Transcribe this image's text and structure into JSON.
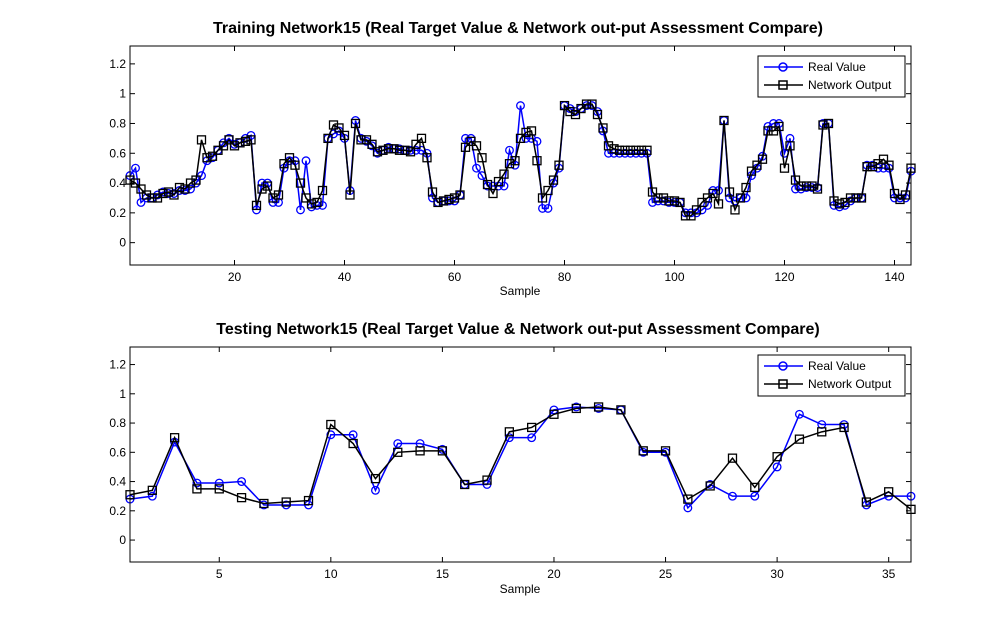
{
  "colors": {
    "real": "#0000ff",
    "network": "#000000",
    "axes": "#000000",
    "background": "#ffffff"
  },
  "chart_data": [
    {
      "type": "line",
      "title": "Training Network15 (Real Target Value & Network out-put Assessment Compare)",
      "xlabel": "Sample",
      "ylabel": "",
      "xlim": [
        1,
        143
      ],
      "ylim": [
        -0.15,
        1.32
      ],
      "xticks": [
        20,
        40,
        60,
        80,
        100,
        120,
        140
      ],
      "yticks": [
        0,
        0.2,
        0.4,
        0.6,
        0.8,
        1,
        1.2
      ],
      "grid": false,
      "legend_position": "top-right",
      "x": [
        1,
        2,
        3,
        4,
        5,
        6,
        7,
        8,
        9,
        10,
        11,
        12,
        13,
        14,
        15,
        16,
        17,
        18,
        19,
        20,
        21,
        22,
        23,
        24,
        25,
        26,
        27,
        28,
        29,
        30,
        31,
        32,
        33,
        34,
        35,
        36,
        37,
        38,
        39,
        40,
        41,
        42,
        43,
        44,
        45,
        46,
        47,
        48,
        49,
        50,
        51,
        52,
        53,
        54,
        55,
        56,
        57,
        58,
        59,
        60,
        61,
        62,
        63,
        64,
        65,
        66,
        67,
        68,
        69,
        70,
        71,
        72,
        73,
        74,
        75,
        76,
        77,
        78,
        79,
        80,
        81,
        82,
        83,
        84,
        85,
        86,
        87,
        88,
        89,
        90,
        91,
        92,
        93,
        94,
        95,
        96,
        97,
        98,
        99,
        100,
        101,
        102,
        103,
        104,
        105,
        106,
        107,
        108,
        109,
        110,
        111,
        112,
        113,
        114,
        115,
        116,
        117,
        118,
        119,
        120,
        121,
        122,
        123,
        124,
        125,
        126,
        127,
        128,
        129,
        130,
        131,
        132,
        133,
        134,
        135,
        136,
        137,
        138,
        139,
        140,
        141,
        142,
        143
      ],
      "series": [
        {
          "name": "Real Value",
          "marker": "circle",
          "values": [
            0.45,
            0.5,
            0.27,
            0.3,
            0.3,
            0.32,
            0.34,
            0.33,
            0.33,
            0.35,
            0.35,
            0.36,
            0.4,
            0.45,
            0.55,
            0.57,
            0.62,
            0.67,
            0.7,
            0.66,
            0.67,
            0.7,
            0.72,
            0.22,
            0.4,
            0.4,
            0.27,
            0.27,
            0.5,
            0.55,
            0.55,
            0.22,
            0.55,
            0.24,
            0.25,
            0.25,
            0.7,
            0.73,
            0.75,
            0.7,
            0.35,
            0.82,
            0.7,
            0.68,
            0.65,
            0.6,
            0.62,
            0.64,
            0.63,
            0.63,
            0.62,
            0.62,
            0.62,
            0.62,
            0.6,
            0.3,
            0.27,
            0.28,
            0.28,
            0.28,
            0.32,
            0.7,
            0.7,
            0.5,
            0.45,
            0.38,
            0.38,
            0.38,
            0.38,
            0.62,
            0.52,
            0.92,
            0.7,
            0.7,
            0.68,
            0.23,
            0.23,
            0.4,
            0.5,
            0.92,
            0.9,
            0.88,
            0.9,
            0.92,
            0.92,
            0.88,
            0.75,
            0.6,
            0.6,
            0.6,
            0.6,
            0.6,
            0.6,
            0.6,
            0.6,
            0.27,
            0.28,
            0.28,
            0.27,
            0.27,
            0.27,
            0.2,
            0.2,
            0.2,
            0.22,
            0.25,
            0.35,
            0.35,
            0.82,
            0.3,
            0.28,
            0.3,
            0.3,
            0.45,
            0.5,
            0.58,
            0.78,
            0.8,
            0.8,
            0.6,
            0.7,
            0.36,
            0.36,
            0.37,
            0.37,
            0.37,
            0.8,
            0.8,
            0.25,
            0.24,
            0.25,
            0.28,
            0.3,
            0.3,
            0.52,
            0.52,
            0.5,
            0.5,
            0.5,
            0.3,
            0.3,
            0.3,
            0.48
          ]
        },
        {
          "name": "Network Output",
          "marker": "square",
          "values": [
            0.42,
            0.4,
            0.36,
            0.32,
            0.3,
            0.3,
            0.33,
            0.34,
            0.32,
            0.37,
            0.36,
            0.4,
            0.42,
            0.69,
            0.57,
            0.58,
            0.62,
            0.65,
            0.69,
            0.65,
            0.67,
            0.68,
            0.69,
            0.25,
            0.36,
            0.38,
            0.3,
            0.32,
            0.53,
            0.57,
            0.52,
            0.4,
            0.3,
            0.26,
            0.27,
            0.35,
            0.7,
            0.79,
            0.77,
            0.72,
            0.32,
            0.8,
            0.69,
            0.69,
            0.66,
            0.61,
            0.62,
            0.63,
            0.63,
            0.62,
            0.62,
            0.61,
            0.66,
            0.7,
            0.57,
            0.34,
            0.27,
            0.28,
            0.29,
            0.3,
            0.32,
            0.64,
            0.68,
            0.65,
            0.57,
            0.39,
            0.33,
            0.41,
            0.46,
            0.53,
            0.55,
            0.7,
            0.74,
            0.75,
            0.55,
            0.3,
            0.35,
            0.42,
            0.52,
            0.92,
            0.88,
            0.86,
            0.9,
            0.93,
            0.93,
            0.86,
            0.77,
            0.65,
            0.63,
            0.62,
            0.62,
            0.62,
            0.62,
            0.62,
            0.62,
            0.34,
            0.3,
            0.3,
            0.28,
            0.28,
            0.27,
            0.18,
            0.18,
            0.22,
            0.27,
            0.3,
            0.33,
            0.26,
            0.82,
            0.34,
            0.22,
            0.3,
            0.37,
            0.48,
            0.52,
            0.56,
            0.75,
            0.75,
            0.78,
            0.5,
            0.65,
            0.42,
            0.38,
            0.38,
            0.38,
            0.36,
            0.79,
            0.8,
            0.28,
            0.26,
            0.27,
            0.3,
            0.3,
            0.3,
            0.51,
            0.51,
            0.53,
            0.56,
            0.52,
            0.33,
            0.29,
            0.32,
            0.5
          ]
        }
      ]
    },
    {
      "type": "line",
      "title": "Testing Network15 (Real Target Value & Network out-put Assessment Compare)",
      "xlabel": "Sample",
      "ylabel": "",
      "xlim": [
        1,
        36
      ],
      "ylim": [
        -0.15,
        1.32
      ],
      "xticks": [
        5,
        10,
        15,
        20,
        25,
        30,
        35
      ],
      "yticks": [
        0,
        0.2,
        0.4,
        0.6,
        0.8,
        1,
        1.2
      ],
      "grid": false,
      "legend_position": "top-right",
      "x": [
        1,
        2,
        3,
        4,
        5,
        6,
        7,
        8,
        9,
        10,
        11,
        12,
        13,
        14,
        15,
        16,
        17,
        18,
        19,
        20,
        21,
        22,
        23,
        24,
        25,
        26,
        27,
        28,
        29,
        30,
        31,
        32,
        33,
        34,
        35,
        36
      ],
      "series": [
        {
          "name": "Real Value",
          "marker": "circle",
          "values": [
            0.28,
            0.3,
            0.67,
            0.39,
            0.39,
            0.4,
            0.24,
            0.24,
            0.24,
            0.72,
            0.72,
            0.34,
            0.66,
            0.66,
            0.62,
            0.38,
            0.38,
            0.7,
            0.7,
            0.89,
            0.91,
            0.9,
            0.89,
            0.6,
            0.6,
            0.22,
            0.38,
            0.3,
            0.3,
            0.5,
            0.86,
            0.79,
            0.79,
            0.24,
            0.3,
            0.3
          ]
        },
        {
          "name": "Network Output",
          "marker": "square",
          "values": [
            0.31,
            0.34,
            0.7,
            0.35,
            0.35,
            0.29,
            0.25,
            0.26,
            0.27,
            0.79,
            0.66,
            0.42,
            0.6,
            0.61,
            0.61,
            0.38,
            0.41,
            0.74,
            0.77,
            0.86,
            0.9,
            0.91,
            0.89,
            0.61,
            0.61,
            0.28,
            0.37,
            0.56,
            0.36,
            0.57,
            0.69,
            0.74,
            0.77,
            0.26,
            0.33,
            0.21
          ]
        }
      ]
    }
  ]
}
